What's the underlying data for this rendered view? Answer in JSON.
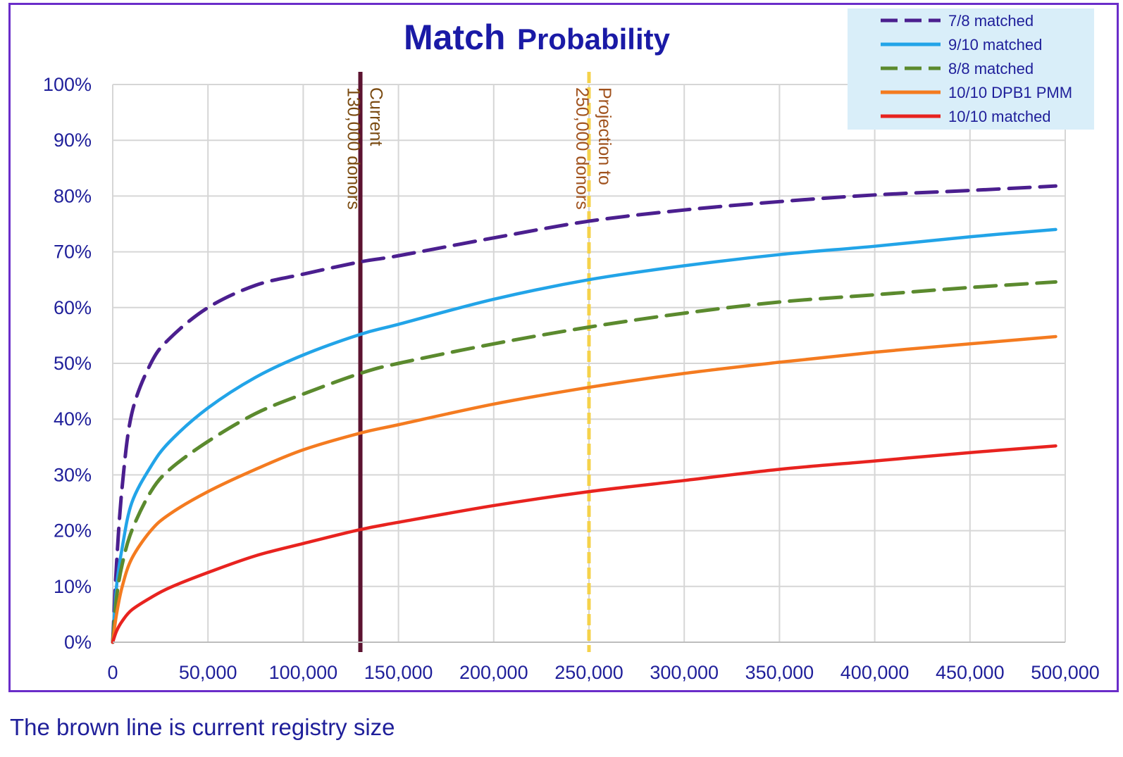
{
  "chart_data": {
    "type": "line",
    "title_main": "Match",
    "title_rest": "Probability",
    "xlabel": "",
    "ylabel": "",
    "xlim": [
      0,
      500000
    ],
    "ylim": [
      0,
      100
    ],
    "x_ticks": [
      "0",
      "50,000",
      "100,000",
      "150,000",
      "200,000",
      "250,000",
      "300,000",
      "350,000",
      "400,000",
      "450,000",
      "500,000"
    ],
    "y_ticks": [
      "0%",
      "10%",
      "20%",
      "30%",
      "40%",
      "50%",
      "60%",
      "70%",
      "80%",
      "90%",
      "100%"
    ],
    "grid": true,
    "legend_position": "top-right",
    "x": [
      0,
      2000,
      5000,
      10000,
      20000,
      30000,
      50000,
      75000,
      100000,
      130000,
      150000,
      200000,
      250000,
      300000,
      350000,
      400000,
      450000,
      495000
    ],
    "series": [
      {
        "name": "7/8 matched",
        "color": "#4b1f8f",
        "dash": true,
        "values": [
          0,
          14,
          28,
          41,
          50,
          54.5,
          60,
          64,
          66,
          68.2,
          69.3,
          72.5,
          75.5,
          77.5,
          79,
          80.2,
          81,
          81.8
        ]
      },
      {
        "name": "9/10 matched",
        "color": "#22a4e8",
        "dash": false,
        "values": [
          0,
          10,
          17,
          25,
          31.5,
          36,
          42,
          47.5,
          51.5,
          55.2,
          57,
          61.5,
          65,
          67.5,
          69.5,
          71,
          72.7,
          74
        ]
      },
      {
        "name": "8/8 matched",
        "color": "#5b8a2e",
        "dash": true,
        "values": [
          0,
          8,
          14,
          20,
          27,
          31,
          36,
          41,
          44.5,
          48.2,
          50,
          53.5,
          56.5,
          59,
          61,
          62.3,
          63.6,
          64.6
        ]
      },
      {
        "name": "10/10 DPB1 PMM",
        "color": "#f47b20",
        "dash": false,
        "values": [
          0,
          5,
          10,
          15,
          20,
          23,
          27,
          31,
          34.5,
          37.5,
          39,
          42.7,
          45.7,
          48.2,
          50.2,
          52,
          53.5,
          54.8
        ]
      },
      {
        "name": "10/10 matched",
        "color": "#e8231f",
        "dash": false,
        "values": [
          0,
          2,
          3.8,
          5.8,
          8,
          9.8,
          12.5,
          15.5,
          17.7,
          20.2,
          21.5,
          24.5,
          27,
          29,
          31,
          32.5,
          34,
          35.2
        ]
      }
    ],
    "reference_lines": [
      {
        "x": 130000,
        "color": "#5c1330",
        "label_line1": "Current",
        "label_line2": "130,000 donors",
        "label_color": "#7a4a10"
      },
      {
        "x": 250000,
        "color": "#f5d24a",
        "label_line1": "Projection to",
        "label_line2": "250,000 donors",
        "label_color": "#a0521d",
        "dash": true
      }
    ]
  },
  "footnote": "The brown line is current registry size"
}
